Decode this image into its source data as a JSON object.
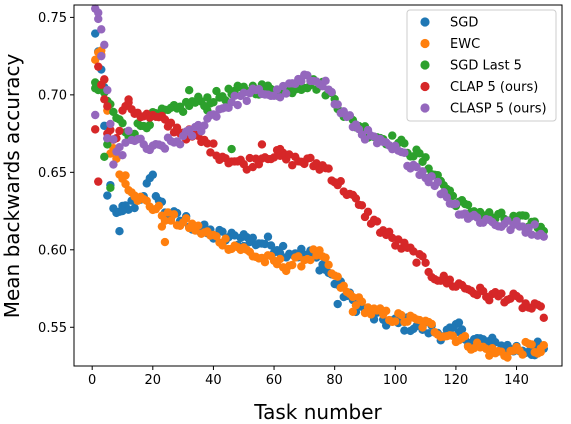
{
  "chart_data": {
    "type": "scatter",
    "title": "",
    "xlabel": "Task number",
    "ylabel": "Mean backwards accuracy",
    "xlim": [
      -6,
      155
    ],
    "ylim": [
      0.525,
      0.758
    ],
    "xticks": [
      0,
      20,
      40,
      60,
      80,
      100,
      120,
      140
    ],
    "yticks": [
      0.55,
      0.6,
      0.65,
      0.7,
      0.75
    ],
    "ytick_labels": [
      "0.55",
      "0.60",
      "0.65",
      "0.70",
      "0.75"
    ],
    "grid": false,
    "legend_position": "top-right",
    "series": [
      {
        "name": "SGD",
        "color": "#1f77b4",
        "anchors": [
          [
            1,
            0.738
          ],
          [
            2,
            0.73
          ],
          [
            4,
            0.7
          ],
          [
            6,
            0.64
          ],
          [
            8,
            0.62
          ],
          [
            10,
            0.625
          ],
          [
            14,
            0.63
          ],
          [
            18,
            0.64
          ],
          [
            20,
            0.645
          ],
          [
            22,
            0.632
          ],
          [
            25,
            0.622
          ],
          [
            28,
            0.62
          ],
          [
            32,
            0.618
          ],
          [
            36,
            0.612
          ],
          [
            40,
            0.61
          ],
          [
            44,
            0.608
          ],
          [
            48,
            0.607
          ],
          [
            52,
            0.606
          ],
          [
            56,
            0.605
          ],
          [
            60,
            0.603
          ],
          [
            64,
            0.6
          ],
          [
            68,
            0.598
          ],
          [
            72,
            0.596
          ],
          [
            76,
            0.59
          ],
          [
            80,
            0.58
          ],
          [
            84,
            0.57
          ],
          [
            88,
            0.563
          ],
          [
            92,
            0.558
          ],
          [
            96,
            0.555
          ],
          [
            100,
            0.552
          ],
          [
            104,
            0.552
          ],
          [
            108,
            0.551
          ],
          [
            112,
            0.548
          ],
          [
            116,
            0.546
          ],
          [
            120,
            0.547
          ],
          [
            124,
            0.543
          ],
          [
            128,
            0.541
          ],
          [
            132,
            0.539
          ],
          [
            136,
            0.537
          ],
          [
            140,
            0.536
          ],
          [
            144,
            0.536
          ],
          [
            148,
            0.536
          ]
        ],
        "noise": 0.005,
        "extras": [
          [
            9,
            0.612
          ],
          [
            5,
            0.635
          ],
          [
            10,
            0.625
          ],
          [
            35,
            0.615
          ],
          [
            50,
            0.61
          ],
          [
            81,
            0.565
          ],
          [
            121,
            0.553
          ],
          [
            132,
            0.534
          ],
          [
            146,
            0.532
          ],
          [
            4,
            0.68
          ]
        ]
      },
      {
        "name": "EWC",
        "color": "#ff7f0e",
        "anchors": [
          [
            1,
            0.72
          ],
          [
            3,
            0.73
          ],
          [
            4,
            0.71
          ],
          [
            5,
            0.69
          ],
          [
            6,
            0.665
          ],
          [
            8,
            0.66
          ],
          [
            10,
            0.645
          ],
          [
            13,
            0.64
          ],
          [
            16,
            0.632
          ],
          [
            20,
            0.628
          ],
          [
            24,
            0.622
          ],
          [
            28,
            0.618
          ],
          [
            32,
            0.616
          ],
          [
            36,
            0.612
          ],
          [
            40,
            0.608
          ],
          [
            44,
            0.605
          ],
          [
            48,
            0.602
          ],
          [
            52,
            0.598
          ],
          [
            56,
            0.594
          ],
          [
            60,
            0.592
          ],
          [
            64,
            0.59
          ],
          [
            68,
            0.592
          ],
          [
            72,
            0.596
          ],
          [
            74,
            0.598
          ],
          [
            76,
            0.594
          ],
          [
            80,
            0.582
          ],
          [
            84,
            0.572
          ],
          [
            88,
            0.566
          ],
          [
            92,
            0.56
          ],
          [
            96,
            0.558
          ],
          [
            100,
            0.556
          ],
          [
            104,
            0.555
          ],
          [
            108,
            0.553
          ],
          [
            112,
            0.55
          ],
          [
            116,
            0.546
          ],
          [
            120,
            0.544
          ],
          [
            124,
            0.54
          ],
          [
            128,
            0.537
          ],
          [
            132,
            0.534
          ],
          [
            136,
            0.533
          ],
          [
            140,
            0.535
          ],
          [
            144,
            0.537
          ],
          [
            148,
            0.535
          ]
        ],
        "noise": 0.004,
        "extras": [
          [
            24,
            0.605
          ],
          [
            23,
            0.615
          ],
          [
            11,
            0.648
          ],
          [
            14,
            0.635
          ],
          [
            45,
            0.6
          ],
          [
            148,
            0.534
          ],
          [
            86,
            0.56
          ],
          [
            3,
            0.726
          ]
        ]
      },
      {
        "name": "SGD Last 5",
        "color": "#2ca02c",
        "anchors": [
          [
            1,
            0.705
          ],
          [
            4,
            0.7
          ],
          [
            8,
            0.685
          ],
          [
            12,
            0.675
          ],
          [
            16,
            0.68
          ],
          [
            20,
            0.685
          ],
          [
            24,
            0.688
          ],
          [
            28,
            0.69
          ],
          [
            32,
            0.694
          ],
          [
            36,
            0.696
          ],
          [
            40,
            0.698
          ],
          [
            44,
            0.7
          ],
          [
            48,
            0.702
          ],
          [
            52,
            0.704
          ],
          [
            56,
            0.704
          ],
          [
            60,
            0.702
          ],
          [
            64,
            0.703
          ],
          [
            68,
            0.706
          ],
          [
            72,
            0.708
          ],
          [
            76,
            0.705
          ],
          [
            80,
            0.698
          ],
          [
            84,
            0.685
          ],
          [
            88,
            0.68
          ],
          [
            92,
            0.675
          ],
          [
            96,
            0.672
          ],
          [
            100,
            0.67
          ],
          [
            104,
            0.665
          ],
          [
            108,
            0.66
          ],
          [
            112,
            0.652
          ],
          [
            116,
            0.642
          ],
          [
            120,
            0.632
          ],
          [
            124,
            0.626
          ],
          [
            128,
            0.624
          ],
          [
            132,
            0.621
          ],
          [
            136,
            0.62
          ],
          [
            140,
            0.619
          ],
          [
            144,
            0.618
          ],
          [
            148,
            0.615
          ]
        ],
        "noise": 0.004,
        "extras": [
          [
            1,
            0.708
          ],
          [
            5,
            0.668
          ],
          [
            4,
            0.66
          ],
          [
            6,
            0.64
          ],
          [
            46,
            0.665
          ],
          [
            38,
            0.69
          ],
          [
            32,
            0.703
          ]
        ]
      },
      {
        "name": "CLAP 5 (ours)",
        "color": "#d62728",
        "anchors": [
          [
            1,
            0.675
          ],
          [
            2,
            0.72
          ],
          [
            4,
            0.7
          ],
          [
            6,
            0.68
          ],
          [
            8,
            0.67
          ],
          [
            11,
            0.695
          ],
          [
            14,
            0.69
          ],
          [
            18,
            0.686
          ],
          [
            22,
            0.684
          ],
          [
            26,
            0.68
          ],
          [
            30,
            0.676
          ],
          [
            34,
            0.672
          ],
          [
            38,
            0.668
          ],
          [
            42,
            0.662
          ],
          [
            46,
            0.658
          ],
          [
            50,
            0.655
          ],
          [
            54,
            0.658
          ],
          [
            58,
            0.662
          ],
          [
            62,
            0.66
          ],
          [
            66,
            0.658
          ],
          [
            70,
            0.657
          ],
          [
            74,
            0.655
          ],
          [
            78,
            0.652
          ],
          [
            80,
            0.645
          ],
          [
            84,
            0.638
          ],
          [
            88,
            0.628
          ],
          [
            92,
            0.62
          ],
          [
            96,
            0.612
          ],
          [
            100,
            0.605
          ],
          [
            104,
            0.6
          ],
          [
            108,
            0.594
          ],
          [
            112,
            0.585
          ],
          [
            116,
            0.58
          ],
          [
            120,
            0.578
          ],
          [
            124,
            0.575
          ],
          [
            128,
            0.572
          ],
          [
            132,
            0.57
          ],
          [
            136,
            0.57
          ],
          [
            140,
            0.567
          ],
          [
            144,
            0.563
          ],
          [
            148,
            0.56
          ]
        ],
        "noise": 0.004,
        "extras": [
          [
            2,
            0.644
          ],
          [
            5,
            0.675
          ],
          [
            12,
            0.695
          ],
          [
            56,
            0.668
          ],
          [
            62,
            0.665
          ],
          [
            4,
            0.71
          ]
        ]
      },
      {
        "name": "CLASP 5 (ours)",
        "color": "#9467bd",
        "anchors": [
          [
            2,
            0.752
          ],
          [
            4,
            0.73
          ],
          [
            5,
            0.7
          ],
          [
            6,
            0.68
          ],
          [
            8,
            0.665
          ],
          [
            10,
            0.66
          ],
          [
            12,
            0.675
          ],
          [
            16,
            0.668
          ],
          [
            20,
            0.664
          ],
          [
            24,
            0.668
          ],
          [
            28,
            0.67
          ],
          [
            32,
            0.674
          ],
          [
            36,
            0.68
          ],
          [
            40,
            0.688
          ],
          [
            44,
            0.693
          ],
          [
            48,
            0.697
          ],
          [
            52,
            0.7
          ],
          [
            56,
            0.702
          ],
          [
            60,
            0.7
          ],
          [
            64,
            0.703
          ],
          [
            68,
            0.708
          ],
          [
            72,
            0.71
          ],
          [
            74,
            0.712
          ],
          [
            78,
            0.705
          ],
          [
            80,
            0.695
          ],
          [
            84,
            0.685
          ],
          [
            88,
            0.678
          ],
          [
            92,
            0.672
          ],
          [
            96,
            0.667
          ],
          [
            100,
            0.664
          ],
          [
            104,
            0.658
          ],
          [
            108,
            0.652
          ],
          [
            112,
            0.645
          ],
          [
            116,
            0.637
          ],
          [
            120,
            0.628
          ],
          [
            124,
            0.622
          ],
          [
            128,
            0.62
          ],
          [
            132,
            0.618
          ],
          [
            136,
            0.616
          ],
          [
            140,
            0.615
          ],
          [
            144,
            0.614
          ],
          [
            148,
            0.612
          ]
        ],
        "noise": 0.004,
        "extras": [
          [
            2,
            0.753
          ],
          [
            1,
            0.687
          ],
          [
            5,
            0.672
          ],
          [
            7,
            0.655
          ],
          [
            3,
            0.725
          ],
          [
            70,
            0.713
          ]
        ]
      }
    ]
  }
}
